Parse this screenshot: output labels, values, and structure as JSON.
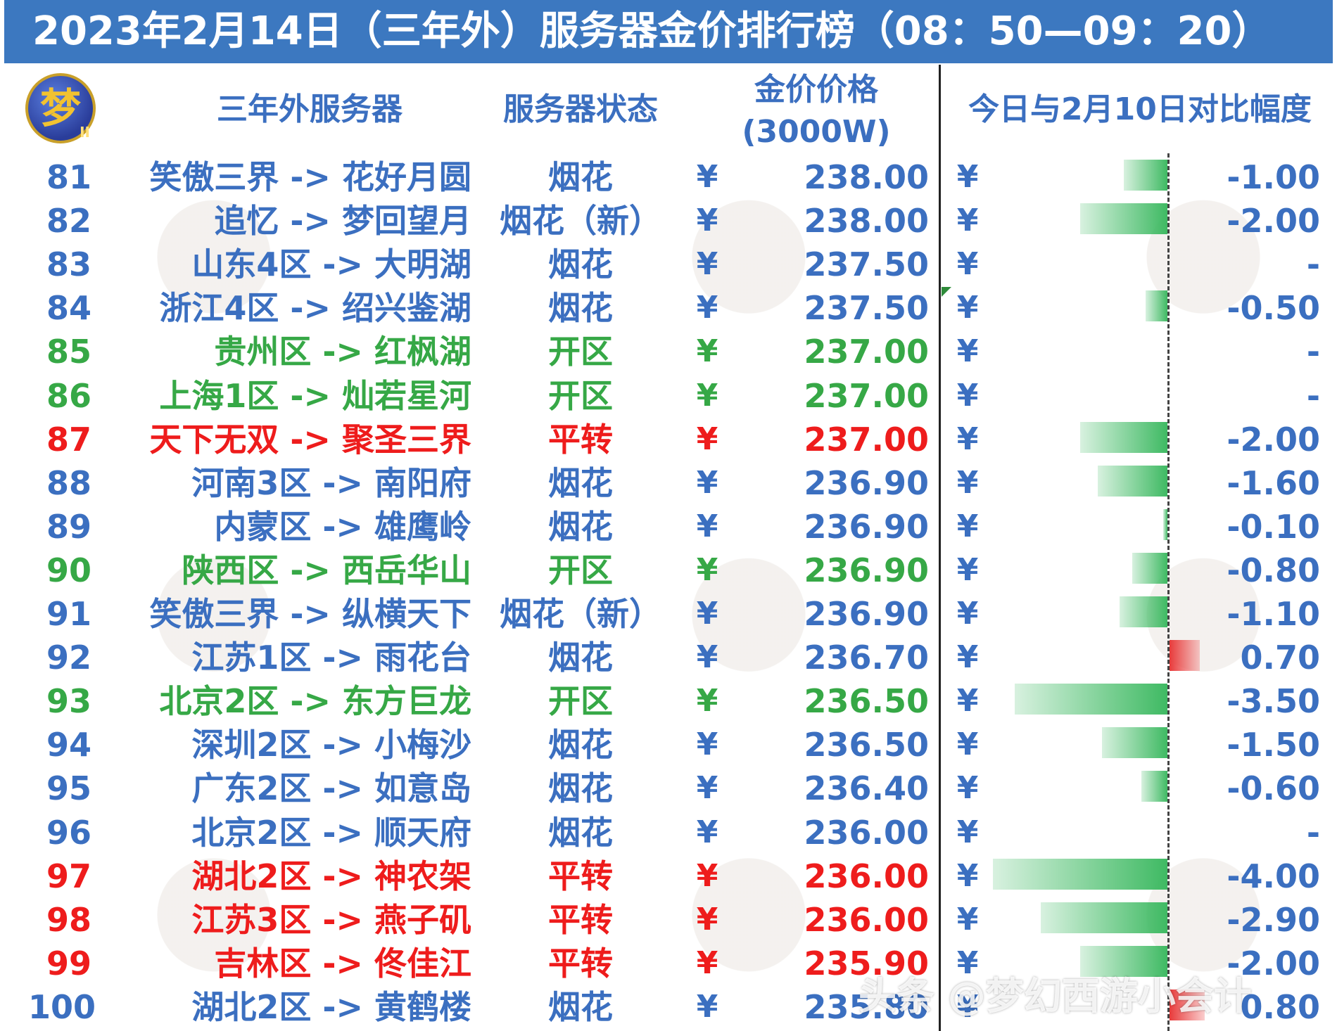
{
  "title": "2023年2月14日（三年外）服务器金价排行榜（08：50—09：20）",
  "logo": {
    "glyph": "梦",
    "sub": "II"
  },
  "headers": {
    "server": "三年外服务器",
    "status": "服务器状态",
    "price_line1": "金价价格",
    "price_line2": "(3000W)",
    "compare": "今日与2月10日对比幅度"
  },
  "currency": "¥",
  "colors": {
    "blue": "#3b6fc0",
    "green": "#36a846",
    "red": "#ee1c1c",
    "bar_negative": "#3fba63",
    "bar_positive": "#e83b3b",
    "title_bg": "#3c78c0"
  },
  "rows": [
    {
      "rank": "81",
      "server": "笑傲三界 -> 花好月圆",
      "status": "烟花",
      "price": "238.00",
      "delta": "-1.00",
      "delta_value": -1.0,
      "color": "blue"
    },
    {
      "rank": "82",
      "server": "追忆 -> 梦回望月",
      "status": "烟花（新）",
      "price": "238.00",
      "delta": "-2.00",
      "delta_value": -2.0,
      "color": "blue"
    },
    {
      "rank": "83",
      "server": "山东4区 -> 大明湖",
      "status": "烟花",
      "price": "237.50",
      "delta": "-",
      "delta_value": 0,
      "color": "blue"
    },
    {
      "rank": "84",
      "server": "浙江4区 -> 绍兴鉴湖",
      "status": "烟花",
      "price": "237.50",
      "delta": "-0.50",
      "delta_value": -0.5,
      "color": "blue"
    },
    {
      "rank": "85",
      "server": "贵州区 -> 红枫湖",
      "status": "开区",
      "price": "237.00",
      "delta": "-",
      "delta_value": 0,
      "color": "green"
    },
    {
      "rank": "86",
      "server": "上海1区 -> 灿若星河",
      "status": "开区",
      "price": "237.00",
      "delta": "-",
      "delta_value": 0,
      "color": "green"
    },
    {
      "rank": "87",
      "server": "天下无双 -> 聚圣三界",
      "status": "平转",
      "price": "237.00",
      "delta": "-2.00",
      "delta_value": -2.0,
      "color": "red"
    },
    {
      "rank": "88",
      "server": "河南3区 -> 南阳府",
      "status": "烟花",
      "price": "236.90",
      "delta": "-1.60",
      "delta_value": -1.6,
      "color": "blue"
    },
    {
      "rank": "89",
      "server": "内蒙区 -> 雄鹰岭",
      "status": "烟花",
      "price": "236.90",
      "delta": "-0.10",
      "delta_value": -0.1,
      "color": "blue"
    },
    {
      "rank": "90",
      "server": "陕西区 -> 西岳华山",
      "status": "开区",
      "price": "236.90",
      "delta": "-0.80",
      "delta_value": -0.8,
      "color": "green"
    },
    {
      "rank": "91",
      "server": "笑傲三界 -> 纵横天下",
      "status": "烟花（新）",
      "price": "236.90",
      "delta": "-1.10",
      "delta_value": -1.1,
      "color": "blue"
    },
    {
      "rank": "92",
      "server": "江苏1区 -> 雨花台",
      "status": "烟花",
      "price": "236.70",
      "delta": "0.70",
      "delta_value": 0.7,
      "color": "blue"
    },
    {
      "rank": "93",
      "server": "北京2区 -> 东方巨龙",
      "status": "开区",
      "price": "236.50",
      "delta": "-3.50",
      "delta_value": -3.5,
      "color": "green"
    },
    {
      "rank": "94",
      "server": "深圳2区 -> 小梅沙",
      "status": "烟花",
      "price": "236.50",
      "delta": "-1.50",
      "delta_value": -1.5,
      "color": "blue"
    },
    {
      "rank": "95",
      "server": "广东2区 -> 如意岛",
      "status": "烟花",
      "price": "236.40",
      "delta": "-0.60",
      "delta_value": -0.6,
      "color": "blue"
    },
    {
      "rank": "96",
      "server": "北京2区 -> 顺天府",
      "status": "烟花",
      "price": "236.00",
      "delta": "-",
      "delta_value": 0,
      "color": "blue"
    },
    {
      "rank": "97",
      "server": "湖北2区 -> 神农架",
      "status": "平转",
      "price": "236.00",
      "delta": "-4.00",
      "delta_value": -4.0,
      "color": "red"
    },
    {
      "rank": "98",
      "server": "江苏3区 -> 燕子矶",
      "status": "平转",
      "price": "236.00",
      "delta": "-2.90",
      "delta_value": -2.9,
      "color": "red"
    },
    {
      "rank": "99",
      "server": "吉林区 -> 佟佳江",
      "status": "平转",
      "price": "235.90",
      "delta": "-2.00",
      "delta_value": -2.0,
      "color": "red"
    },
    {
      "rank": "100",
      "server": "湖北2区 -> 黄鹤楼",
      "status": "烟花",
      "price": "235.80",
      "delta": "0.80",
      "delta_value": 0.8,
      "color": "blue"
    }
  ],
  "watermark": "头条 @梦幻西游小会计"
}
